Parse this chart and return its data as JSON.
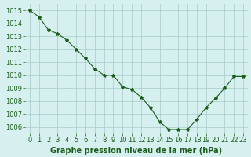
{
  "x": [
    0,
    1,
    2,
    3,
    4,
    5,
    6,
    7,
    8,
    9,
    10,
    11,
    12,
    13,
    14,
    15,
    16,
    17,
    18,
    19,
    20,
    21,
    22,
    23
  ],
  "y": [
    1015.0,
    1014.5,
    1013.5,
    1013.2,
    1012.7,
    1012.0,
    1011.3,
    1010.5,
    1010.0,
    1010.0,
    1009.1,
    1008.9,
    1008.3,
    1007.5,
    1006.4,
    1005.8,
    1005.8,
    1005.8,
    1006.6,
    1007.5,
    1008.2,
    1009.0,
    1009.9,
    1009.9
  ],
  "line_color": "#1a5c1a",
  "marker": "*",
  "marker_color": "#1a5c1a",
  "marker_size": 3,
  "bg_color": "#d6f0f0",
  "grid_color": "#a8c8c8",
  "xlabel": "Graphe pression niveau de la mer (hPa)",
  "xlabel_color": "#1a5c1a",
  "xlabel_fontsize": 7,
  "tick_color": "#1a5c1a",
  "tick_fontsize": 6,
  "ylim": [
    1005.5,
    1015.5
  ],
  "yticks": [
    1006,
    1007,
    1008,
    1009,
    1010,
    1011,
    1012,
    1013,
    1014,
    1015
  ],
  "xticks": [
    0,
    1,
    2,
    3,
    4,
    5,
    6,
    7,
    8,
    9,
    10,
    11,
    12,
    13,
    14,
    15,
    16,
    17,
    18,
    19,
    20,
    21,
    22,
    23
  ],
  "xlim": [
    -0.5,
    23.5
  ]
}
